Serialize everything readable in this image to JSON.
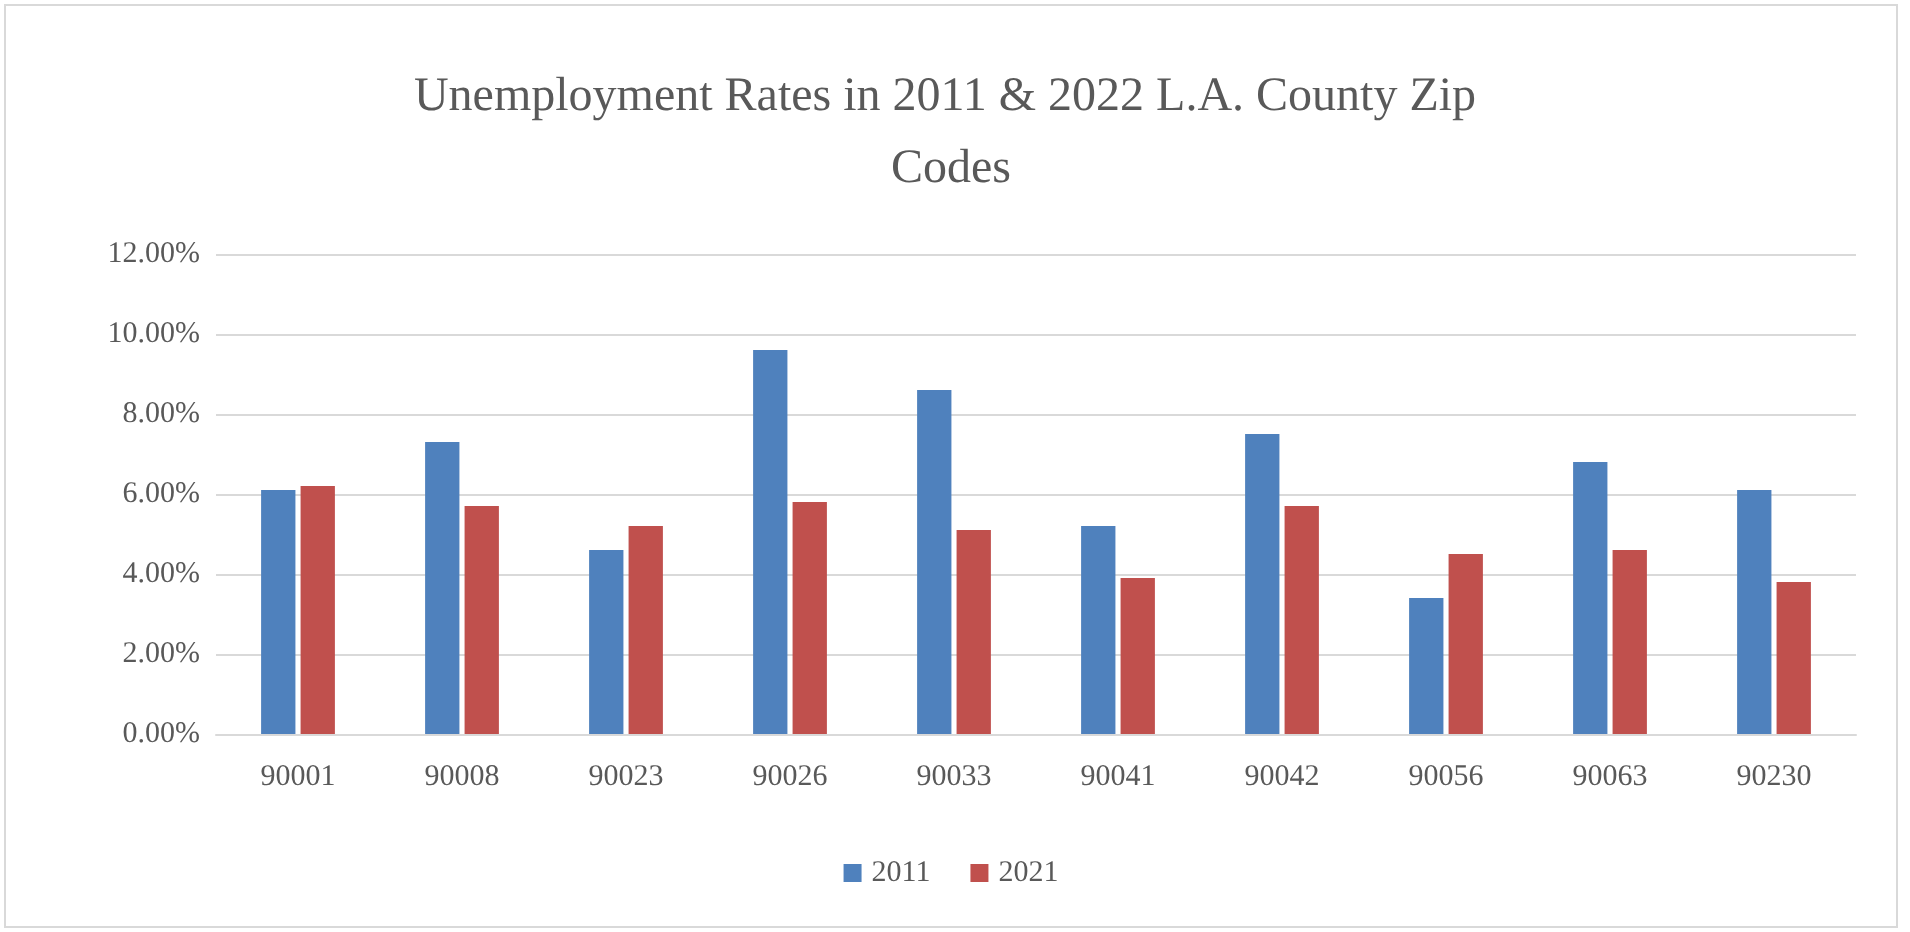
{
  "chart_data": {
    "type": "bar",
    "title": "Unemployment Rates in 2011 & 2022 L.A. County Zip Codes",
    "categories": [
      "90001",
      "90008",
      "90023",
      "90026",
      "90033",
      "90041",
      "90042",
      "90056",
      "90063",
      "90230"
    ],
    "series": [
      {
        "name": "2011",
        "color": "#4f81bd",
        "values": [
          6.1,
          7.3,
          4.6,
          9.6,
          8.6,
          5.2,
          7.5,
          3.4,
          6.8,
          6.1
        ]
      },
      {
        "name": "2021",
        "color": "#c0504d",
        "values": [
          6.2,
          5.7,
          5.2,
          5.8,
          5.1,
          3.9,
          5.7,
          4.5,
          4.6,
          3.8
        ]
      }
    ],
    "ylim": [
      0,
      12
    ],
    "yticks": [
      {
        "value": 0,
        "label": "0.00%"
      },
      {
        "value": 2,
        "label": "2.00%"
      },
      {
        "value": 4,
        "label": "4.00%"
      },
      {
        "value": 6,
        "label": "6.00%"
      },
      {
        "value": 8,
        "label": "8.00%"
      },
      {
        "value": 10,
        "label": "10.00%"
      },
      {
        "value": 12,
        "label": "12.00%"
      }
    ],
    "grid": "y",
    "legend": "bottom"
  }
}
